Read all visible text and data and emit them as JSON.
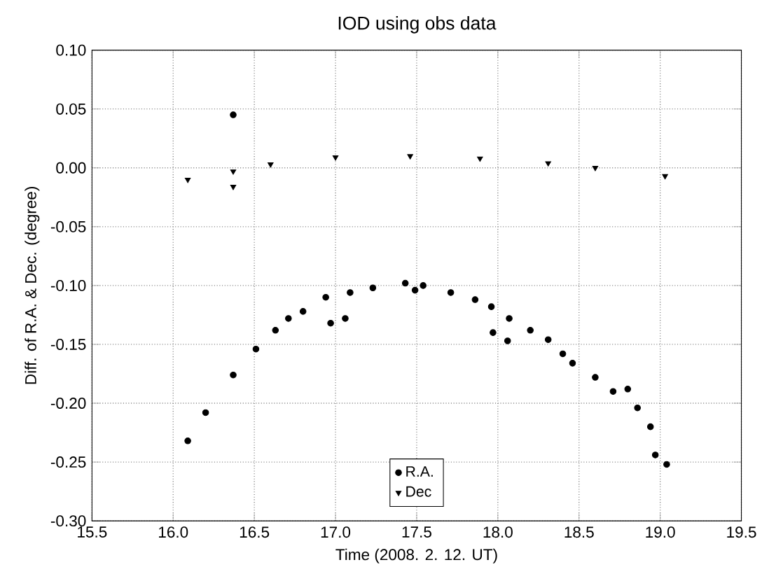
{
  "chart_data": {
    "type": "scatter",
    "title": "IOD using obs data",
    "xlabel": "Time (2008. 2. 12. UT)",
    "ylabel": "Diff. of R.A. & Dec. (degree)",
    "xlim": [
      15.5,
      19.5
    ],
    "xticks": [
      15.5,
      {
        "value": 16,
        "label": "16.0"
      },
      16.5,
      {
        "value": 17,
        "label": "17.0"
      },
      17.5,
      {
        "value": 18,
        "label": "18.0"
      },
      18.5,
      {
        "value": 19,
        "label": "19.0"
      },
      19.5
    ],
    "ylim": [
      -0.3,
      0.1
    ],
    "yticks": [
      {
        "value": -0.3,
        "label": "-0.30"
      },
      {
        "value": -0.25,
        "label": "-0.25"
      },
      {
        "value": -0.2,
        "label": "-0.20"
      },
      {
        "value": -0.15,
        "label": "-0.15"
      },
      {
        "value": -0.1,
        "label": "-0.10"
      },
      {
        "value": -0.05,
        "label": "-0.05"
      },
      {
        "value": 0,
        "label": "0.00"
      },
      {
        "value": 0.05,
        "label": "0.05"
      },
      {
        "value": 0.1,
        "label": "0.10"
      }
    ],
    "grid": true,
    "legend": "bottom",
    "series": [
      {
        "name": "R.A.",
        "color": "#000000",
        "marker": "circle",
        "x": [
          16.09,
          16.2,
          16.37,
          16.51,
          16.63,
          16.71,
          16.8,
          16.94,
          16.97,
          17.06,
          17.09,
          17.23,
          17.43,
          17.49,
          17.54,
          17.71,
          17.86,
          17.96,
          17.97,
          18.06,
          18.07,
          18.2,
          18.31,
          18.4,
          18.46,
          18.6,
          18.71,
          18.8,
          18.86,
          18.94,
          18.97,
          19.04,
          16.37
        ],
        "values": [
          -0.232,
          -0.208,
          -0.176,
          -0.154,
          -0.138,
          -0.128,
          -0.122,
          -0.11,
          -0.132,
          -0.128,
          -0.106,
          -0.102,
          -0.098,
          -0.104,
          -0.1,
          -0.106,
          -0.112,
          -0.118,
          -0.14,
          -0.147,
          -0.128,
          -0.138,
          -0.146,
          -0.158,
          -0.166,
          -0.178,
          -0.19,
          -0.188,
          -0.204,
          -0.22,
          -0.244,
          -0.252,
          0.045
        ]
      },
      {
        "name": "Dec",
        "color": "#000000",
        "marker": "triangle",
        "x": [
          16.09,
          16.37,
          16.6,
          17.0,
          17.46,
          17.89,
          18.31,
          18.6,
          19.03,
          16.37
        ],
        "values": [
          -0.01,
          -0.003,
          0.003,
          0.009,
          0.01,
          0.008,
          0.004,
          0.0,
          -0.007,
          -0.016
        ]
      }
    ]
  }
}
